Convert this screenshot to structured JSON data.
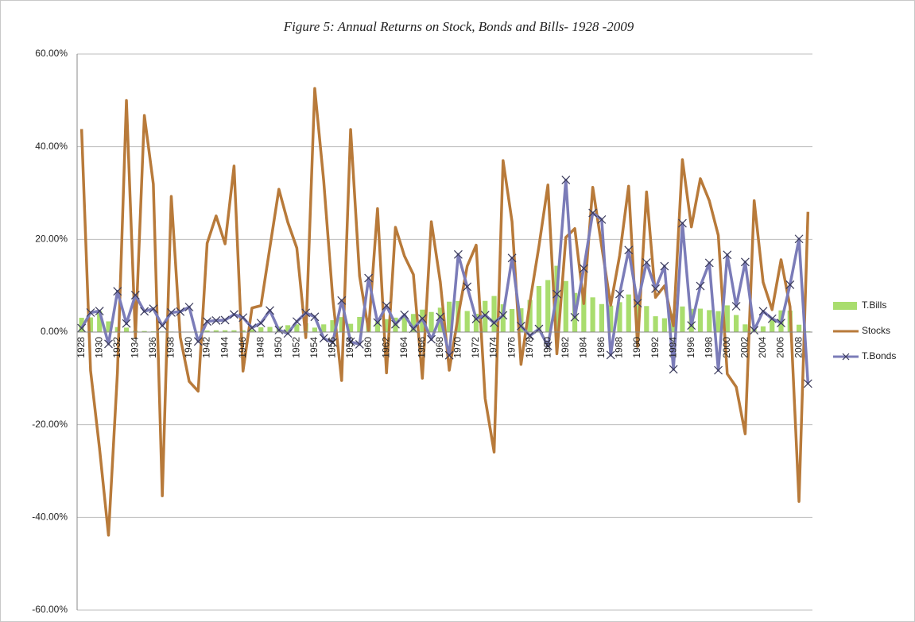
{
  "chart_data": {
    "type": "bar-line",
    "title": "Figure 5: Annual Returns on  Stock, Bonds and Bills- 1928 -2009",
    "categories": [
      "1928",
      null,
      "1930",
      null,
      "1932",
      null,
      "1934",
      null,
      "1936",
      null,
      "1938",
      null,
      "1940",
      null,
      "1942",
      null,
      "1944",
      null,
      "1946",
      null,
      "1948",
      null,
      "1950",
      null,
      "1952",
      null,
      "1954",
      null,
      "1956",
      null,
      "1958",
      null,
      "1960",
      null,
      "1962",
      null,
      "1964",
      null,
      "1966",
      null,
      "1968",
      null,
      "1970",
      null,
      "1972",
      null,
      "1974",
      null,
      "1976",
      null,
      "1978",
      null,
      "1980",
      null,
      "1982",
      null,
      "1984",
      null,
      "1986",
      null,
      "1988",
      null,
      "1990",
      null,
      "1992",
      null,
      "1994",
      null,
      "1996",
      null,
      "1998",
      null,
      "2000",
      null,
      "2002",
      null,
      "2004",
      null,
      "2006",
      null,
      "2008",
      null
    ],
    "series": [
      {
        "name": "T.Bills",
        "type": "bar",
        "color": "#a9dd6e",
        "values": [
          3.08,
          3.16,
          4.55,
          2.31,
          1.07,
          0.96,
          0.3,
          0.23,
          0.15,
          0.12,
          0.11,
          0.03,
          0.04,
          0.02,
          0.33,
          0.38,
          0.38,
          0.38,
          0.38,
          0.57,
          1.02,
          1.1,
          1.17,
          1.48,
          1.67,
          1.89,
          0.96,
          1.66,
          2.56,
          3.23,
          1.78,
          3.26,
          3.05,
          2.27,
          2.78,
          3.11,
          3.51,
          3.9,
          4.84,
          4.33,
          5.26,
          6.56,
          6.69,
          4.54,
          3.95,
          6.73,
          7.78,
          5.99,
          4.97,
          5.13,
          6.93,
          9.94,
          11.22,
          14.3,
          11.01,
          8.45,
          9.61,
          7.49,
          6.04,
          5.72,
          6.45,
          8.11,
          7.55,
          5.61,
          3.41,
          2.98,
          3.99,
          5.52,
          5.02,
          5.05,
          4.73,
          4.51,
          5.76,
          3.67,
          1.66,
          1.03,
          1.23,
          3.01,
          4.68,
          4.64,
          1.59,
          0.14
        ]
      },
      {
        "name": "Stocks",
        "type": "line",
        "color": "#b87a3a",
        "values": [
          43.81,
          -8.3,
          -25.12,
          -43.84,
          -8.64,
          49.98,
          -1.19,
          46.74,
          31.94,
          -35.34,
          29.28,
          -1.1,
          -10.67,
          -12.77,
          19.17,
          25.06,
          19.03,
          35.82,
          -8.43,
          5.2,
          5.7,
          18.3,
          30.81,
          23.68,
          18.15,
          -1.21,
          52.56,
          32.6,
          7.44,
          -10.46,
          43.72,
          12.06,
          0.34,
          26.64,
          -8.81,
          22.61,
          16.42,
          12.4,
          -9.97,
          23.8,
          10.81,
          -8.24,
          3.56,
          14.22,
          18.76,
          -14.31,
          -25.9,
          37.0,
          23.83,
          -6.98,
          6.51,
          18.52,
          31.74,
          -4.7,
          20.42,
          22.34,
          6.15,
          31.24,
          18.49,
          5.81,
          16.54,
          31.48,
          -3.06,
          30.23,
          7.49,
          9.97,
          1.33,
          37.2,
          22.68,
          33.1,
          28.34,
          20.89,
          -9.03,
          -11.85,
          -21.97,
          28.36,
          10.74,
          4.83,
          15.61,
          5.48,
          -36.55,
          25.94
        ]
      },
      {
        "name": "T.Bonds",
        "type": "line",
        "marker": "x",
        "color": "#7b7cb8",
        "values": [
          0.84,
          4.2,
          4.54,
          -2.56,
          8.79,
          1.86,
          7.96,
          4.47,
          5.02,
          1.38,
          4.21,
          4.41,
          5.4,
          -2.02,
          2.29,
          2.49,
          2.58,
          3.8,
          3.13,
          0.92,
          1.95,
          4.66,
          0.43,
          -0.3,
          2.27,
          4.14,
          3.29,
          -1.34,
          -2.26,
          6.8,
          -2.1,
          -2.65,
          11.64,
          2.06,
          5.69,
          1.68,
          3.73,
          0.72,
          2.91,
          -1.58,
          3.27,
          -5.01,
          16.75,
          9.79,
          2.82,
          3.66,
          1.99,
          3.61,
          15.98,
          1.29,
          -0.78,
          0.67,
          -2.99,
          8.2,
          32.81,
          3.2,
          13.73,
          25.71,
          24.28,
          -4.96,
          8.22,
          17.69,
          6.24,
          15.0,
          9.36,
          14.21,
          -8.04,
          23.48,
          1.43,
          9.94,
          14.92,
          -8.25,
          16.66,
          5.57,
          15.12,
          0.38,
          4.49,
          2.87,
          1.96,
          10.21,
          20.1,
          -11.12
        ]
      }
    ],
    "ylim": [
      -60,
      60
    ],
    "yticks": [
      {
        "value": -60,
        "label": "-60.00%"
      },
      {
        "value": -40,
        "label": "-40.00%"
      },
      {
        "value": -20,
        "label": "-20.00%"
      },
      {
        "value": 0,
        "label": "0.00%"
      },
      {
        "value": 20,
        "label": "20.00%"
      },
      {
        "value": 40,
        "label": "40.00%"
      },
      {
        "value": 60,
        "label": "60.00%"
      }
    ],
    "grid": true,
    "legend": "right"
  }
}
